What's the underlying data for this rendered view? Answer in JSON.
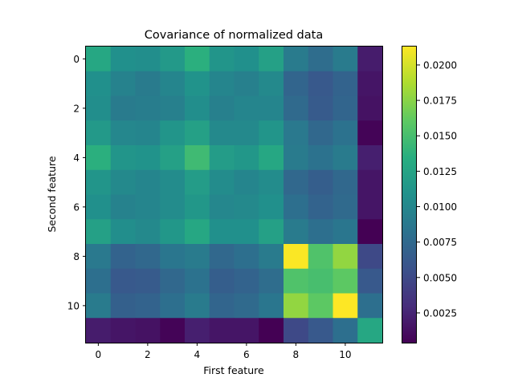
{
  "chart_data": {
    "type": "heatmap",
    "title": "Covariance of normalized data",
    "xlabel": "First feature",
    "ylabel": "Second feature",
    "colormap": "viridis",
    "vmin": 0.0004,
    "vmax": 0.0213,
    "x_ticks": [
      0,
      2,
      4,
      6,
      8,
      10
    ],
    "y_ticks": [
      0,
      2,
      4,
      6,
      8,
      10
    ],
    "colorbar_ticks": [
      "0.0025",
      "0.0050",
      "0.0075",
      "0.0100",
      "0.0125",
      "0.0150",
      "0.0175",
      "0.0200"
    ],
    "colorbar_tick_values": [
      0.0025,
      0.005,
      0.0075,
      0.01,
      0.0125,
      0.015,
      0.0175,
      0.02
    ],
    "rows": [
      [
        0.0128,
        0.0108,
        0.0106,
        0.0116,
        0.0136,
        0.0112,
        0.0108,
        0.0122,
        0.009,
        0.0078,
        0.009,
        0.002
      ],
      [
        0.0108,
        0.0096,
        0.009,
        0.0098,
        0.011,
        0.0098,
        0.0094,
        0.0102,
        0.0072,
        0.0062,
        0.007,
        0.0016
      ],
      [
        0.0106,
        0.009,
        0.0092,
        0.0094,
        0.0106,
        0.0094,
        0.0098,
        0.0098,
        0.0076,
        0.0064,
        0.0072,
        0.0014
      ],
      [
        0.0116,
        0.01,
        0.0098,
        0.0112,
        0.0122,
        0.0102,
        0.0102,
        0.0112,
        0.0088,
        0.0074,
        0.0082,
        0.0006
      ],
      [
        0.0136,
        0.0112,
        0.011,
        0.0122,
        0.0146,
        0.0118,
        0.0114,
        0.0128,
        0.009,
        0.0082,
        0.009,
        0.0022
      ],
      [
        0.0112,
        0.0102,
        0.0098,
        0.0104,
        0.0118,
        0.0104,
        0.0098,
        0.0104,
        0.0074,
        0.0066,
        0.0074,
        0.0016
      ],
      [
        0.0108,
        0.0096,
        0.0098,
        0.0104,
        0.0114,
        0.01,
        0.0102,
        0.0108,
        0.008,
        0.007,
        0.0076,
        0.0016
      ],
      [
        0.0122,
        0.0106,
        0.0102,
        0.0114,
        0.0128,
        0.0108,
        0.0108,
        0.0122,
        0.009,
        0.008,
        0.0086,
        0.0004
      ],
      [
        0.0088,
        0.007,
        0.0074,
        0.0086,
        0.009,
        0.0074,
        0.008,
        0.009,
        0.0212,
        0.0154,
        0.0178,
        0.005
      ],
      [
        0.008,
        0.0062,
        0.0064,
        0.0074,
        0.0082,
        0.0066,
        0.007,
        0.0078,
        0.0154,
        0.015,
        0.016,
        0.0062
      ],
      [
        0.009,
        0.0068,
        0.007,
        0.008,
        0.009,
        0.0072,
        0.0076,
        0.0086,
        0.0178,
        0.016,
        0.0213,
        0.008
      ],
      [
        0.002,
        0.0016,
        0.0014,
        0.0006,
        0.0022,
        0.0016,
        0.0016,
        0.0004,
        0.005,
        0.0062,
        0.008,
        0.0128
      ]
    ]
  }
}
